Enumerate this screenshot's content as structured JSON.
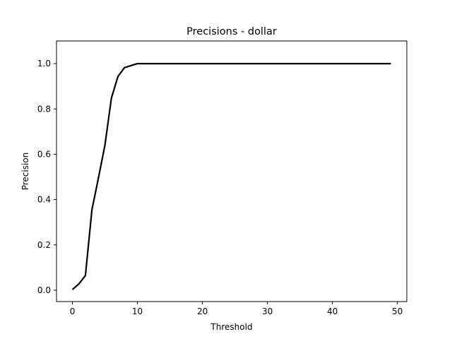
{
  "chart_data": {
    "type": "line",
    "title": "Precisions - dollar",
    "xlabel": "Threshold",
    "ylabel": "Precision",
    "xlim": [
      -2.45,
      51.45
    ],
    "ylim": [
      -0.05,
      1.1
    ],
    "x_ticks": [
      0,
      10,
      20,
      30,
      40,
      50
    ],
    "y_ticks": [
      0.0,
      0.2,
      0.4,
      0.6,
      0.8,
      1.0
    ],
    "x_tick_labels": [
      "0",
      "10",
      "20",
      "30",
      "40",
      "50"
    ],
    "y_tick_labels": [
      "0.0",
      "0.2",
      "0.4",
      "0.6",
      "0.8",
      "1.0"
    ],
    "grid": false,
    "line_color": "#000000",
    "series": [
      {
        "x": [
          0,
          1,
          2,
          3,
          4,
          5,
          6,
          7,
          8,
          9,
          10,
          11,
          12,
          13,
          14,
          15,
          16,
          17,
          18,
          19,
          20,
          21,
          22,
          23,
          24,
          25,
          26,
          27,
          28,
          29,
          30,
          31,
          32,
          33,
          34,
          35,
          36,
          37,
          38,
          39,
          40,
          41,
          42,
          43,
          44,
          45,
          46,
          47,
          48,
          49
        ],
        "values": [
          0.003,
          0.028,
          0.065,
          0.355,
          0.495,
          0.64,
          0.848,
          0.943,
          0.982,
          0.991,
          1.0,
          1.0,
          1.0,
          1.0,
          1.0,
          1.0,
          1.0,
          1.0,
          1.0,
          1.0,
          1.0,
          1.0,
          1.0,
          1.0,
          1.0,
          1.0,
          1.0,
          1.0,
          1.0,
          1.0,
          1.0,
          1.0,
          1.0,
          1.0,
          1.0,
          1.0,
          1.0,
          1.0,
          1.0,
          1.0,
          1.0,
          1.0,
          1.0,
          1.0,
          1.0,
          1.0,
          1.0,
          1.0,
          1.0,
          1.0
        ]
      }
    ]
  }
}
